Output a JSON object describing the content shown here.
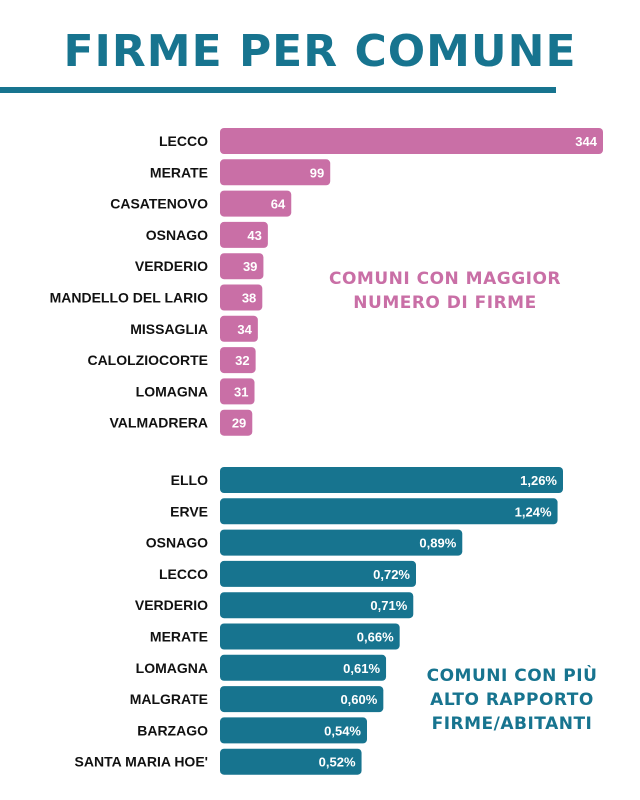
{
  "title": "FIRME PER COMUNE",
  "chart_data": [
    {
      "type": "bar",
      "orientation": "horizontal",
      "title": "COMUNI CON MAGGIOR NUMERO DI FIRME",
      "title_lines": [
        "COMUNI CON MAGGIOR",
        "NUMERO DI FIRME"
      ],
      "color": "#c96fa6",
      "categories": [
        "LECCO",
        "MERATE",
        "CASATENOVO",
        "OSNAGO",
        "VERDERIO",
        "MANDELLO DEL LARIO",
        "MISSAGLIA",
        "CALOLZIOCORTE",
        "LOMAGNA",
        "VALMADRERA"
      ],
      "values": [
        344,
        99,
        64,
        43,
        39,
        38,
        34,
        32,
        31,
        29
      ],
      "value_labels": [
        "344",
        "99",
        "64",
        "43",
        "39",
        "38",
        "34",
        "32",
        "31",
        "29"
      ]
    },
    {
      "type": "bar",
      "orientation": "horizontal",
      "title": "COMUNI CON PIÙ ALTO RAPPORTO FIRME/ABITANTI",
      "title_lines": [
        "COMUNI CON PIÙ",
        "ALTO RAPPORTO",
        "FIRME/ABITANTI"
      ],
      "color": "#17748f",
      "categories": [
        "ELLO",
        "ERVE",
        "OSNAGO",
        "LECCO",
        "VERDERIO",
        "MERATE",
        "LOMAGNA",
        "MALGRATE",
        "BARZAGO",
        "SANTA MARIA HOE'"
      ],
      "values": [
        1.26,
        1.24,
        0.89,
        0.72,
        0.71,
        0.66,
        0.61,
        0.6,
        0.54,
        0.52
      ],
      "value_labels": [
        "1,26%",
        "1,24%",
        "0,89%",
        "0,72%",
        "0,71%",
        "0,66%",
        "0,61%",
        "0,60%",
        "0,54%",
        "0,52%"
      ]
    }
  ]
}
